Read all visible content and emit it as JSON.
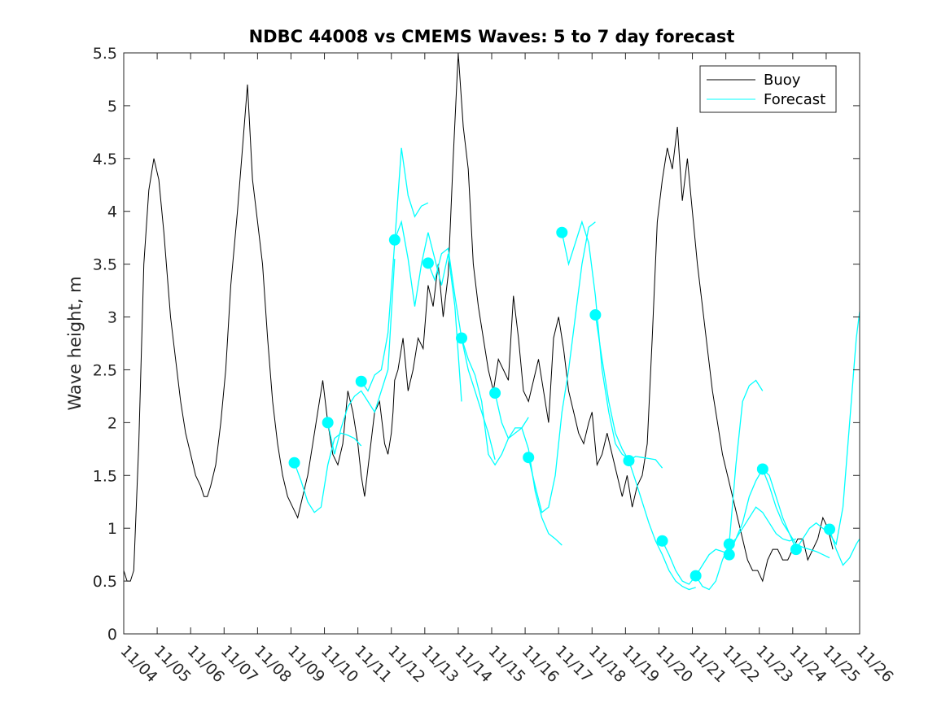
{
  "chart_data": {
    "type": "line",
    "title": "NDBC 44008 vs CMEMS Waves: 5 to 7 day forecast",
    "xlabel": "",
    "ylabel": "Wave height, m",
    "xlim": [
      0,
      22
    ],
    "ylim": [
      0,
      5.5
    ],
    "x_ticks": [
      0,
      1,
      2,
      3,
      4,
      5,
      6,
      7,
      8,
      9,
      10,
      11,
      12,
      13,
      14,
      15,
      16,
      17,
      18,
      19,
      20,
      21,
      22
    ],
    "x_tick_labels": [
      "11/04",
      "11/05",
      "11/06",
      "11/07",
      "11/08",
      "11/09",
      "11/10",
      "11/11",
      "11/12",
      "11/13",
      "11/14",
      "11/15",
      "11/16",
      "11/17",
      "11/18",
      "11/19",
      "11/20",
      "11/21",
      "11/22",
      "11/23",
      "11/24",
      "11/25",
      "11/26"
    ],
    "y_ticks": [
      0,
      0.5,
      1,
      1.5,
      2,
      2.5,
      3,
      3.5,
      4,
      4.5,
      5,
      5.5
    ],
    "y_tick_labels": [
      "0",
      "0.5",
      "1",
      "1.5",
      "2",
      "2.5",
      "3",
      "3.5",
      "4",
      "4.5",
      "5",
      "5.5"
    ],
    "legend": {
      "placement": "top-right",
      "entries": [
        "Buoy",
        "Forecast"
      ]
    },
    "colors": {
      "buoy": "#000000",
      "forecast": "#00ffff",
      "axes": "#262626"
    },
    "series": [
      {
        "name": "Buoy",
        "color": "#000000",
        "x": [
          0,
          0.1,
          0.2,
          0.3,
          0.45,
          0.6,
          0.75,
          0.9,
          1.05,
          1.2,
          1.4,
          1.55,
          1.7,
          1.85,
          2.0,
          2.15,
          2.3,
          2.4,
          2.5,
          2.6,
          2.75,
          2.9,
          3.05,
          3.2,
          3.4,
          3.55,
          3.7,
          3.85,
          4.0,
          4.15,
          4.3,
          4.45,
          4.6,
          4.75,
          4.9,
          5.05,
          5.2,
          5.35,
          5.5,
          5.65,
          5.8,
          5.95,
          6.1,
          6.25,
          6.4,
          6.55,
          6.7,
          6.85,
          7.0,
          7.1,
          7.2,
          7.35,
          7.5,
          7.65,
          7.8,
          7.9,
          8.0,
          8.05,
          8.1,
          8.2,
          8.35,
          8.5,
          8.65,
          8.8,
          8.95,
          9.1,
          9.25,
          9.4,
          9.55,
          9.7,
          9.85,
          10.0,
          10.15,
          10.3,
          10.45,
          10.6,
          10.75,
          10.9,
          11.05,
          11.2,
          11.35,
          11.5,
          11.65,
          11.8,
          11.95,
          12.1,
          12.25,
          12.4,
          12.55,
          12.7,
          12.85,
          13.0,
          13.15,
          13.3,
          13.45,
          13.6,
          13.75,
          13.9,
          14.0,
          14.15,
          14.3,
          14.45,
          14.6,
          14.75,
          14.9,
          15.05,
          15.2,
          15.35,
          15.5,
          15.65,
          15.8,
          15.95,
          16.1,
          16.25,
          16.4,
          16.55,
          16.7,
          16.85,
          17.0,
          17.15,
          17.3,
          17.45,
          17.6,
          17.75,
          17.9,
          18.05,
          18.2,
          18.35,
          18.5,
          18.65,
          18.8,
          18.95,
          19.1,
          19.25,
          19.4,
          19.55,
          19.7,
          19.85,
          20.0,
          20.15,
          20.3,
          20.45,
          20.6,
          20.75,
          20.9,
          21.05,
          21.2
        ],
        "y": [
          0.6,
          0.5,
          0.5,
          0.6,
          1.8,
          3.5,
          4.2,
          4.5,
          4.3,
          3.8,
          3.0,
          2.6,
          2.2,
          1.9,
          1.7,
          1.5,
          1.4,
          1.3,
          1.3,
          1.4,
          1.6,
          2.0,
          2.5,
          3.3,
          4.0,
          4.6,
          5.2,
          4.3,
          3.9,
          3.5,
          2.8,
          2.2,
          1.8,
          1.5,
          1.3,
          1.2,
          1.1,
          1.3,
          1.5,
          1.8,
          2.1,
          2.4,
          2.0,
          1.7,
          1.6,
          1.8,
          2.3,
          2.1,
          1.8,
          1.5,
          1.3,
          1.7,
          2.1,
          2.2,
          1.8,
          1.7,
          1.9,
          2.1,
          2.4,
          2.5,
          2.8,
          2.3,
          2.5,
          2.8,
          2.7,
          3.3,
          3.1,
          3.5,
          3.0,
          3.4,
          4.5,
          5.5,
          4.8,
          4.4,
          3.5,
          3.1,
          2.8,
          2.5,
          2.3,
          2.6,
          2.5,
          2.4,
          3.2,
          2.8,
          2.3,
          2.2,
          2.4,
          2.6,
          2.3,
          2.0,
          2.8,
          3.0,
          2.7,
          2.3,
          2.1,
          1.9,
          1.8,
          2.0,
          2.1,
          1.6,
          1.7,
          1.9,
          1.7,
          1.5,
          1.3,
          1.5,
          1.2,
          1.4,
          1.5,
          1.8,
          2.8,
          3.9,
          4.3,
          4.6,
          4.4,
          4.8,
          4.1,
          4.5,
          4.0,
          3.5,
          3.1,
          2.7,
          2.3,
          2.0,
          1.7,
          1.5,
          1.3,
          1.1,
          0.9,
          0.7,
          0.6,
          0.6,
          0.5,
          0.7,
          0.8,
          0.8,
          0.7,
          0.7,
          0.8,
          0.9,
          0.9,
          0.7,
          0.8,
          0.9,
          1.1,
          1.0,
          0.8
        ]
      },
      {
        "name": "Forecast",
        "color": "#00ffff",
        "segments": [
          {
            "x": [
              5.1,
              5.3,
              5.5,
              5.7,
              5.9,
              6.1,
              6.3,
              6.5,
              6.7,
              6.9,
              7.1
            ],
            "y": [
              1.62,
              1.45,
              1.25,
              1.15,
              1.2,
              1.6,
              1.85,
              1.9,
              1.88,
              1.85,
              1.78
            ]
          },
          {
            "x": [
              6.1,
              6.3,
              6.5,
              6.7,
              6.9,
              7.1,
              7.3,
              7.5,
              7.7,
              7.9,
              8.1
            ],
            "y": [
              2.0,
              1.7,
              1.95,
              2.15,
              2.25,
              2.3,
              2.2,
              2.1,
              2.3,
              2.5,
              3.55
            ]
          },
          {
            "x": [
              7.1,
              7.3,
              7.5,
              7.7,
              7.9,
              8.1,
              8.3,
              8.5,
              8.7,
              8.9,
              9.1
            ],
            "y": [
              2.39,
              2.3,
              2.45,
              2.5,
              2.85,
              3.7,
              4.6,
              4.15,
              3.95,
              4.05,
              4.08
            ]
          },
          {
            "x": [
              8.1,
              8.3,
              8.5,
              8.7,
              8.9,
              9.1,
              9.3,
              9.5,
              9.7,
              9.9,
              10.1
            ],
            "y": [
              3.73,
              3.9,
              3.55,
              3.1,
              3.5,
              3.8,
              3.55,
              3.3,
              3.6,
              3.1,
              2.2
            ]
          },
          {
            "x": [
              9.1,
              9.3,
              9.5,
              9.7,
              9.9,
              10.1,
              10.3,
              10.5,
              10.7,
              10.9,
              11.1
            ],
            "y": [
              3.51,
              3.35,
              3.6,
              3.65,
              3.2,
              2.8,
              2.5,
              2.3,
              2.1,
              1.9,
              1.65
            ]
          },
          {
            "x": [
              10.1,
              10.3,
              10.5,
              10.7,
              10.9,
              11.1,
              11.3,
              11.5,
              11.7,
              11.9,
              12.1
            ],
            "y": [
              2.8,
              2.6,
              2.45,
              2.2,
              1.7,
              1.6,
              1.7,
              1.85,
              1.9,
              1.95,
              2.05
            ]
          },
          {
            "x": [
              11.1,
              11.3,
              11.5,
              11.7,
              11.9,
              12.1,
              12.3,
              12.5,
              12.7,
              12.9,
              13.1
            ],
            "y": [
              2.28,
              2.0,
              1.85,
              1.95,
              1.95,
              1.75,
              1.35,
              1.1,
              0.95,
              0.9,
              0.84
            ]
          },
          {
            "x": [
              12.1,
              12.3,
              12.5,
              12.7,
              12.9,
              13.1,
              13.3,
              13.5,
              13.7,
              13.9,
              14.1
            ],
            "y": [
              1.67,
              1.4,
              1.15,
              1.2,
              1.5,
              2.1,
              2.5,
              3.0,
              3.5,
              3.85,
              3.9
            ]
          },
          {
            "x": [
              13.1,
              13.3,
              13.5,
              13.7,
              13.9,
              14.1,
              14.3,
              14.5,
              14.7,
              14.9,
              15.1
            ],
            "y": [
              3.8,
              3.5,
              3.7,
              3.9,
              3.7,
              3.2,
              2.5,
              2.1,
              1.8,
              1.7,
              1.66
            ]
          },
          {
            "x": [
              14.1,
              14.3,
              14.5,
              14.7,
              14.9,
              15.1,
              15.3,
              15.5,
              15.7,
              15.9,
              16.1
            ],
            "y": [
              3.02,
              2.6,
              2.2,
              1.9,
              1.75,
              1.64,
              1.68,
              1.67,
              1.66,
              1.65,
              1.57
            ]
          },
          {
            "x": [
              15.1,
              15.3,
              15.5,
              15.7,
              15.9,
              16.1,
              16.3,
              16.5,
              16.7,
              16.9,
              17.1
            ],
            "y": [
              1.64,
              1.45,
              1.25,
              1.05,
              0.88,
              0.75,
              0.6,
              0.5,
              0.45,
              0.42,
              0.44
            ]
          },
          {
            "x": [
              16.1,
              16.3,
              16.5,
              16.7,
              16.9,
              17.1,
              17.3,
              17.5,
              17.7,
              17.9,
              18.1
            ],
            "y": [
              0.88,
              0.75,
              0.6,
              0.5,
              0.47,
              0.55,
              0.65,
              0.75,
              0.8,
              0.78,
              0.75
            ]
          },
          {
            "x": [
              17.1,
              17.3,
              17.5,
              17.7,
              17.9,
              18.1,
              18.3,
              18.5,
              18.7,
              18.9,
              19.1
            ],
            "y": [
              0.55,
              0.45,
              0.42,
              0.5,
              0.7,
              0.85,
              1.6,
              2.2,
              2.35,
              2.4,
              2.3
            ]
          },
          {
            "x": [
              18.1,
              18.3,
              18.5,
              18.7,
              18.9,
              19.1,
              19.3,
              19.5,
              19.7,
              19.9,
              20.1
            ],
            "y": [
              0.85,
              0.9,
              1.0,
              1.1,
              1.2,
              1.15,
              1.05,
              0.95,
              0.9,
              0.88,
              0.9
            ]
          },
          {
            "x": [
              18.1,
              18.3,
              18.5,
              18.7,
              18.9,
              19.1,
              19.3,
              19.5,
              19.7,
              19.9,
              20.1
            ],
            "y": [
              0.75,
              0.9,
              1.05,
              1.3,
              1.45,
              1.56,
              1.5,
              1.3,
              1.1,
              0.95,
              0.8
            ]
          },
          {
            "x": [
              19.1,
              19.3,
              19.5,
              19.7,
              19.9,
              20.1,
              20.3,
              20.5,
              20.7,
              20.9,
              21.1
            ],
            "y": [
              1.56,
              1.4,
              1.2,
              1.05,
              0.95,
              0.85,
              0.82,
              0.8,
              0.78,
              0.75,
              0.72
            ]
          },
          {
            "x": [
              20.1,
              20.3,
              20.5,
              20.7,
              20.9,
              21.1,
              21.3,
              21.5,
              21.7,
              21.9,
              22.0
            ],
            "y": [
              0.8,
              0.9,
              1.0,
              1.05,
              1.0,
              0.95,
              0.85,
              1.2,
              2.0,
              2.8,
              3.05
            ]
          },
          {
            "x": [
              21.1,
              21.3,
              21.5,
              21.7,
              21.9,
              22.0
            ],
            "y": [
              0.99,
              0.8,
              0.65,
              0.72,
              0.85,
              0.9
            ]
          }
        ],
        "markers": {
          "x": [
            5.1,
            6.1,
            7.1,
            8.1,
            9.1,
            10.1,
            11.1,
            12.1,
            13.1,
            14.1,
            15.1,
            16.1,
            17.1,
            18.1,
            18.1,
            19.1,
            20.1,
            21.1
          ],
          "y": [
            1.62,
            2.0,
            2.39,
            3.73,
            3.51,
            2.8,
            2.28,
            1.67,
            3.8,
            3.02,
            1.64,
            0.88,
            0.55,
            0.85,
            0.75,
            1.56,
            0.8,
            0.99
          ]
        }
      }
    ]
  }
}
